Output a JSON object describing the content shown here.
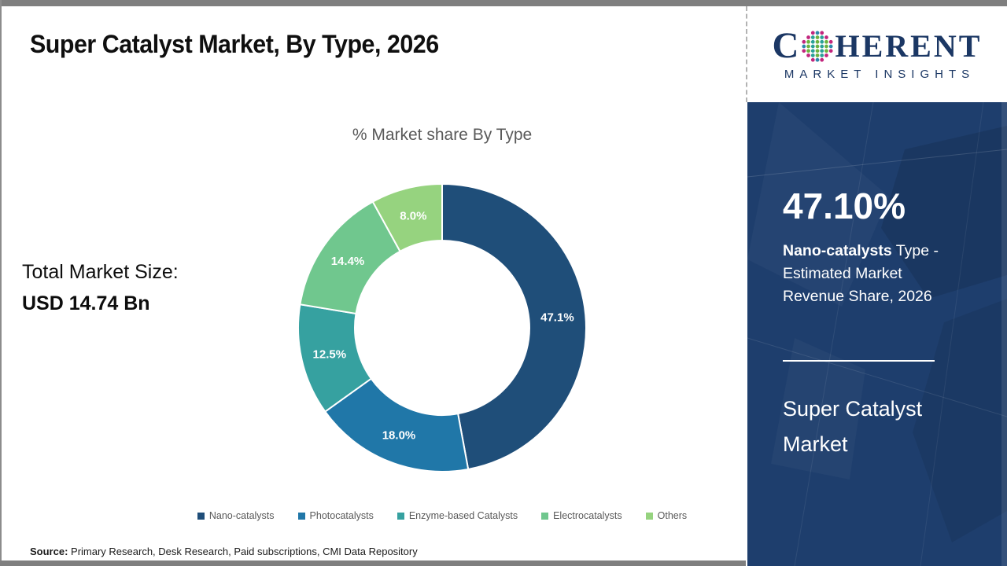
{
  "header": {
    "title": "Super Catalyst Market, By Type, 2026"
  },
  "logo": {
    "name_first_letter": "C",
    "name_rest": "HERENT",
    "tagline": "MARKET INSIGHTS",
    "brand_color": "#1b3764"
  },
  "chart_data": {
    "type": "pie",
    "donut": true,
    "title": "% Market share By Type",
    "categories": [
      "Nano-catalysts",
      "Photocatalysts",
      "Enzyme-based Catalysts",
      "Electrocatalysts",
      "Others"
    ],
    "values": [
      47.1,
      18.0,
      12.5,
      14.4,
      8.0
    ],
    "labels": [
      "47.1%",
      "18.0%",
      "12.5%",
      "14.4%",
      "8.0%"
    ],
    "colors": [
      "#1F4E79",
      "#2077A8",
      "#36A1A0",
      "#70C78E",
      "#96D37F"
    ],
    "unit": "%",
    "start_angle_deg": 0,
    "direction": "clockwise",
    "legend_position": "bottom"
  },
  "left_panel": {
    "total_label": "Total Market Size:",
    "total_value": "USD 14.74 Bn"
  },
  "sidebar": {
    "highlight_value": "47.10%",
    "highlight_bold": "Nano-catalysts",
    "highlight_rest": " Type - Estimated Market Revenue Share, 2026",
    "market_name": "Super Catalyst Market",
    "bg_color": "#1e3e6d"
  },
  "footer": {
    "source_label": "Source:",
    "source_text": " Primary Research, Desk Research, Paid subscriptions, CMI Data Repository"
  }
}
